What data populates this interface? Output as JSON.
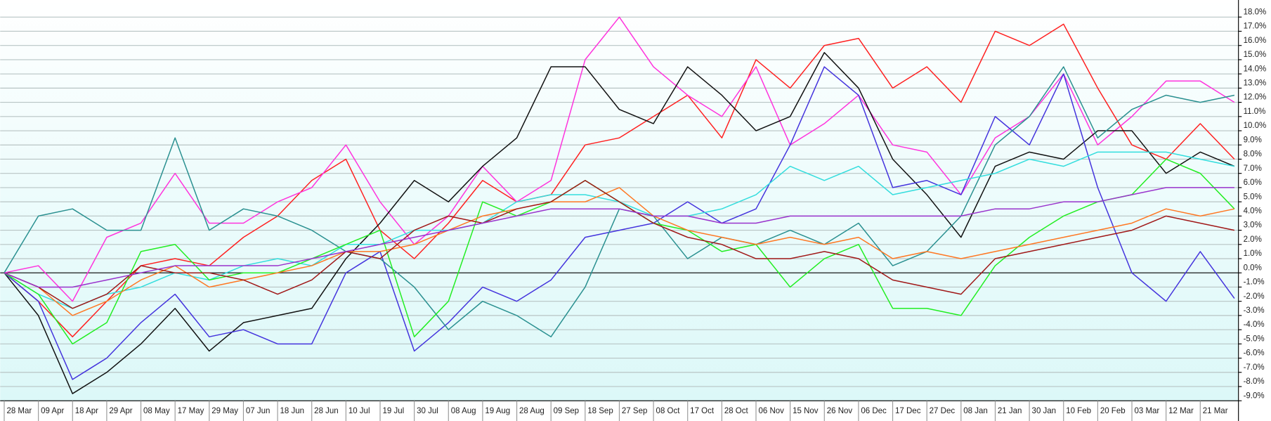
{
  "chart_data": {
    "type": "line",
    "categories": [
      "28 Mar",
      "09 Apr",
      "18 Apr",
      "29 Apr",
      "08 May",
      "17 May",
      "29 May",
      "07 Jun",
      "18 Jun",
      "28 Jun",
      "10 Jul",
      "19 Jul",
      "30 Jul",
      "08 Aug",
      "19 Aug",
      "28 Aug",
      "09 Sep",
      "18 Sep",
      "27 Sep",
      "08 Oct",
      "17 Oct",
      "28 Oct",
      "06 Nov",
      "15 Nov",
      "26 Nov",
      "06 Dec",
      "17 Dec",
      "27 Dec",
      "08 Jan",
      "21 Jan",
      "30 Jan",
      "10 Feb",
      "20 Feb",
      "03 Mar",
      "12 Mar",
      "21 Mar",
      null
    ],
    "ylim": [
      -9,
      19.2
    ],
    "yticks": [
      {
        "value": 18,
        "label": "18.0%"
      },
      {
        "value": 17,
        "label": "17.0%"
      },
      {
        "value": 16,
        "label": "16.0%"
      },
      {
        "value": 15,
        "label": "15.0%"
      },
      {
        "value": 14,
        "label": "14.0%"
      },
      {
        "value": 13,
        "label": "13.0%"
      },
      {
        "value": 12,
        "label": "12.0%"
      },
      {
        "value": 11,
        "label": "11.0%"
      },
      {
        "value": 10,
        "label": "10.0%"
      },
      {
        "value": 9,
        "label": "9.0%"
      },
      {
        "value": 8,
        "label": "8.0%"
      },
      {
        "value": 7,
        "label": "7.0%"
      },
      {
        "value": 6,
        "label": "6.0%"
      },
      {
        "value": 5,
        "label": "5.0%"
      },
      {
        "value": 4,
        "label": "4.0%"
      },
      {
        "value": 3,
        "label": "3.0%"
      },
      {
        "value": 2,
        "label": "2.0%"
      },
      {
        "value": 1,
        "label": "1.0%"
      },
      {
        "value": 0,
        "label": "0.0%"
      },
      {
        "value": -1,
        "label": "-1.0%"
      },
      {
        "value": -2,
        "label": "-2.0%"
      },
      {
        "value": -3,
        "label": "-3.0%"
      },
      {
        "value": -4,
        "label": "-4.0%"
      },
      {
        "value": -5,
        "label": "-5.0%"
      },
      {
        "value": -6,
        "label": "-6.0%"
      },
      {
        "value": -7,
        "label": "-7.0%"
      },
      {
        "value": -8,
        "label": "-8.0%"
      },
      {
        "value": -9,
        "label": "-9.0%"
      }
    ],
    "grid": true,
    "series": [
      {
        "color": "#ff2020",
        "values": [
          0,
          -2,
          -4.5,
          -2,
          0.5,
          1,
          0.5,
          2.5,
          4,
          6.5,
          8,
          3,
          1,
          3.5,
          6.5,
          5,
          5.5,
          9,
          9.5,
          11,
          12.5,
          9.5,
          15,
          13,
          16,
          16.5,
          13,
          14.5,
          12,
          17,
          16,
          17.5,
          13,
          9,
          8,
          10.5,
          8
        ]
      },
      {
        "color": "#ff33dd",
        "values": [
          0,
          0.5,
          -2,
          2.5,
          3.5,
          7,
          3.5,
          3.5,
          5,
          6,
          9,
          5,
          2,
          4,
          7.5,
          5,
          6.5,
          15,
          18,
          14.5,
          12.5,
          11,
          14.5,
          9,
          10.5,
          12.5,
          9,
          8.5,
          5.5,
          9.5,
          11,
          14,
          9,
          11,
          13.5,
          13.5,
          12
        ]
      },
      {
        "color": "#111111",
        "values": [
          0,
          -3,
          -8.5,
          -7,
          -5,
          -2.5,
          -5.5,
          -3.5,
          -3,
          -2.5,
          1,
          3.5,
          6.5,
          5,
          7.5,
          9.5,
          14.5,
          14.5,
          11.5,
          10.5,
          14.5,
          12.5,
          10,
          11,
          15.5,
          13,
          8,
          5.5,
          2.5,
          7.5,
          8.5,
          8,
          10,
          10,
          7,
          8.5,
          7.5
        ]
      },
      {
        "color": "#4433dd",
        "values": [
          0,
          -2,
          -7.5,
          -6,
          -3.5,
          -1.5,
          -4.5,
          -4,
          -5,
          -5,
          0,
          1.5,
          -5.5,
          -3.5,
          -1,
          -2,
          -0.5,
          2.5,
          3,
          3.5,
          5,
          3.5,
          4.5,
          9,
          14.5,
          12.5,
          6,
          6.5,
          5.5,
          11,
          9,
          14,
          6,
          0,
          -2,
          1.5,
          -1.8
        ]
      },
      {
        "color": "#2a9090",
        "values": [
          0,
          4,
          4.5,
          3,
          3,
          9.5,
          3,
          4.5,
          4,
          3,
          1.5,
          1,
          -1,
          -4,
          -2,
          -3,
          -4.5,
          -1,
          4.5,
          4,
          1,
          2.5,
          2,
          3,
          2,
          3.5,
          0.5,
          1.5,
          4,
          9,
          11,
          14.5,
          9.5,
          11.5,
          12.5,
          12,
          12.5
        ]
      },
      {
        "color": "#33dddd",
        "values": [
          0,
          -1.5,
          -2.5,
          -1.5,
          -1,
          0,
          -0.5,
          0.5,
          1,
          0.5,
          2,
          2,
          3,
          3,
          3.5,
          5,
          5.5,
          5.5,
          5,
          4,
          4,
          4.5,
          5.5,
          7.5,
          6.5,
          7.5,
          5.5,
          6,
          6.5,
          7,
          8,
          7.5,
          8.5,
          8.5,
          8.5,
          8,
          7.5
        ]
      },
      {
        "color": "#22ee22",
        "values": [
          0,
          -1.5,
          -5,
          -3.5,
          1.5,
          2,
          -0.5,
          0,
          0,
          1,
          2,
          3,
          -4.5,
          -2,
          5,
          4,
          5,
          6.5,
          5,
          3.5,
          3,
          1.5,
          2,
          -1,
          1,
          2,
          -2.5,
          -2.5,
          -3,
          0.5,
          2.5,
          4,
          5,
          5.5,
          8,
          7,
          4.5
        ]
      },
      {
        "color": "#ff7722",
        "values": [
          0,
          -1,
          -3,
          -2,
          -0.5,
          0.5,
          -1,
          -0.5,
          0,
          0.5,
          1.5,
          1.5,
          2,
          3,
          4,
          4.5,
          5,
          5,
          6,
          4,
          3,
          2.5,
          2,
          2.5,
          2,
          2.5,
          1,
          1.5,
          1,
          1.5,
          2,
          2.5,
          3,
          3.5,
          4.5,
          4,
          4.5
        ]
      },
      {
        "color": "#a01818",
        "values": [
          0,
          -1,
          -2.5,
          -1.5,
          0.5,
          0,
          0,
          -0.5,
          -1.5,
          -0.5,
          1.5,
          1,
          3,
          4,
          3.5,
          4.5,
          5,
          6.5,
          5,
          3.5,
          2.5,
          2,
          1,
          1,
          1.5,
          1,
          -0.5,
          -1,
          -1.5,
          1,
          1.5,
          2,
          2.5,
          3,
          4,
          3.5,
          3
        ]
      },
      {
        "color": "#9933cc",
        "values": [
          0,
          -1,
          -1,
          -0.5,
          0,
          0.5,
          0.5,
          0.5,
          0.5,
          1,
          1.5,
          2,
          2.5,
          3,
          3.5,
          4,
          4.5,
          4.5,
          4.5,
          4,
          4,
          3.5,
          3.5,
          4,
          4,
          4,
          4,
          4,
          4,
          4.5,
          4.5,
          5,
          5,
          5.5,
          6,
          6,
          6
        ]
      }
    ]
  }
}
